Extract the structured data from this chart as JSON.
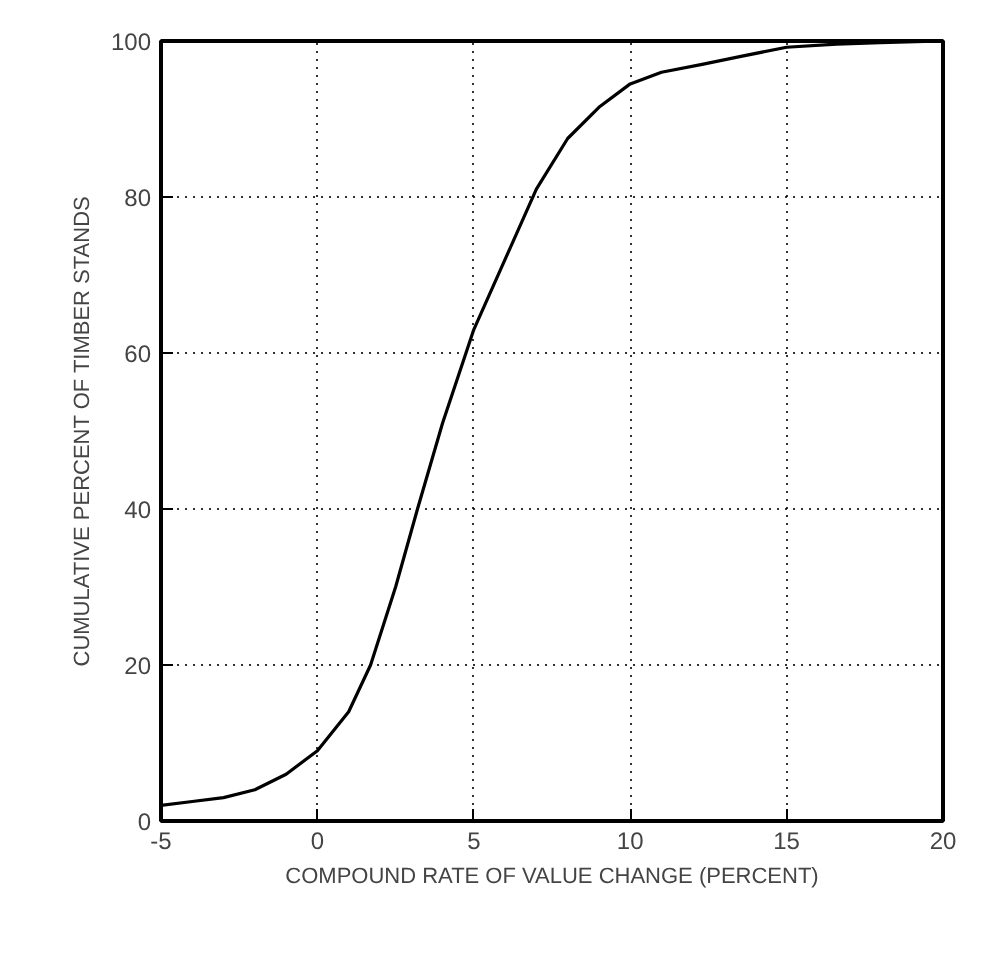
{
  "chart_data": {
    "type": "line",
    "xlabel": "COMPOUND RATE OF VALUE CHANGE (PERCENT)",
    "ylabel": "CUMULATIVE PERCENT OF TIMBER STANDS",
    "x": [
      -5,
      -4,
      -3,
      -2,
      -1,
      0,
      1,
      1.7,
      2.5,
      3.2,
      4,
      4.75,
      5,
      6,
      7,
      8,
      9,
      10,
      11,
      12.3,
      13.5,
      15,
      16.6,
      18,
      20
    ],
    "series": [
      {
        "color": "#000000",
        "values": [
          2,
          2.5,
          3,
          4,
          6,
          9,
          14,
          20,
          30,
          40,
          51,
          60,
          63,
          72,
          81,
          87.5,
          91.5,
          94.5,
          96,
          97,
          98,
          99.2,
          99.6,
          99.8,
          100
        ]
      }
    ],
    "xlim": [
      -5,
      20
    ],
    "ylim": [
      0,
      100
    ],
    "xticks": [
      -5,
      0,
      5,
      10,
      15,
      20
    ],
    "yticks": [
      0,
      20,
      40,
      60,
      80,
      100
    ],
    "grid": true,
    "marker": "none",
    "line_style": "solid"
  }
}
